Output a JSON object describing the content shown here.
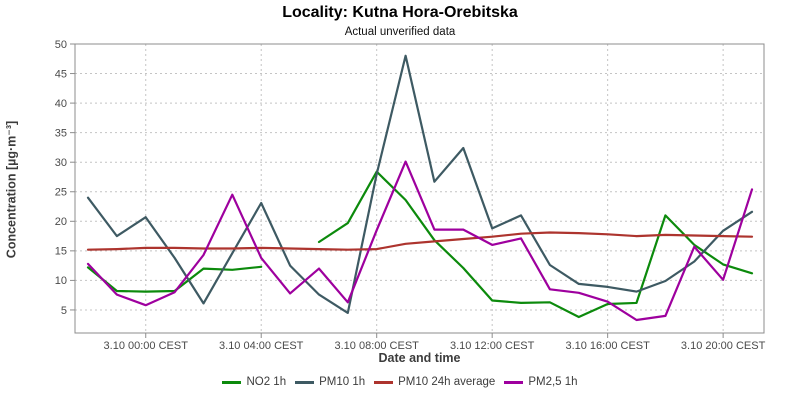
{
  "header": {
    "title": "Locality: Kutna Hora-Orebitska",
    "subtitle": "Actual unverified data"
  },
  "chart_data": {
    "type": "line",
    "title": "Locality: Kutna Hora-Orebitska",
    "subtitle": "Actual unverified data",
    "xlabel": "Date and time",
    "ylabel": "Concentration [µg·m⁻³]",
    "ylim": [
      1.1,
      50.0
    ],
    "yticks": [
      5,
      10,
      15,
      20,
      25,
      30,
      35,
      40,
      45,
      50
    ],
    "grid": true,
    "legend_position": "bottom",
    "x_hours": [
      "2.10 22:00",
      "2.10 23:00",
      "3.10 00:00",
      "3.10 01:00",
      "3.10 02:00",
      "3.10 03:00",
      "3.10 04:00",
      "3.10 05:00",
      "3.10 06:00",
      "3.10 07:00",
      "3.10 08:00",
      "3.10 09:00",
      "3.10 10:00",
      "3.10 11:00",
      "3.10 12:00",
      "3.10 13:00",
      "3.10 14:00",
      "3.10 15:00",
      "3.10 16:00",
      "3.10 17:00",
      "3.10 18:00",
      "3.10 19:00",
      "3.10 20:00",
      "3.10 21:00"
    ],
    "x_tick_positions": [
      2,
      6,
      10,
      14,
      18,
      22
    ],
    "x_tick_labels": [
      "3.10 00:00 CEST",
      "3.10 04:00 CEST",
      "3.10 08:00 CEST",
      "3.10 12:00 CEST",
      "3.10 16:00 CEST",
      "3.10 20:00 CEST"
    ],
    "series": [
      {
        "name": "NO2 1h",
        "color": "#0c8a0c",
        "values": [
          12.2,
          8.2,
          8.1,
          8.2,
          12.0,
          11.8,
          12.3,
          null,
          16.5,
          19.7,
          28.4,
          23.6,
          16.8,
          12.1,
          6.6,
          6.2,
          6.3,
          3.8,
          6.0,
          6.2,
          21.0,
          16.0,
          12.7,
          11.2
        ]
      },
      {
        "name": "PM10 1h",
        "color": "#3e5a63",
        "values": [
          24.0,
          17.5,
          20.7,
          13.8,
          6.1,
          14.6,
          23.1,
          12.5,
          7.6,
          4.5,
          28.0,
          48.0,
          26.7,
          32.4,
          18.8,
          21.0,
          12.6,
          9.4,
          8.9,
          8.1,
          9.9,
          13.2,
          18.4,
          21.6
        ]
      },
      {
        "name": "PM10 24h average",
        "color": "#ad342e",
        "values": [
          15.2,
          15.3,
          15.5,
          15.5,
          15.4,
          15.4,
          15.5,
          15.4,
          15.3,
          15.2,
          15.3,
          16.2,
          16.6,
          17.0,
          17.4,
          17.9,
          18.1,
          18.0,
          17.8,
          17.5,
          17.7,
          17.6,
          17.5,
          17.4
        ]
      },
      {
        "name": "PM2,5 1h",
        "color": "#9e009e",
        "values": [
          12.8,
          7.6,
          5.8,
          8.0,
          14.3,
          24.5,
          13.8,
          7.8,
          12.0,
          6.3,
          18.5,
          30.1,
          18.6,
          18.6,
          16.0,
          17.1,
          8.5,
          7.9,
          6.4,
          3.3,
          4.0,
          15.7,
          10.1,
          25.4
        ]
      }
    ]
  },
  "style_colors": {
    "grid": "#c4c4c4",
    "frame": "#8c8c8c",
    "tick_text": "#4a4a4a"
  }
}
